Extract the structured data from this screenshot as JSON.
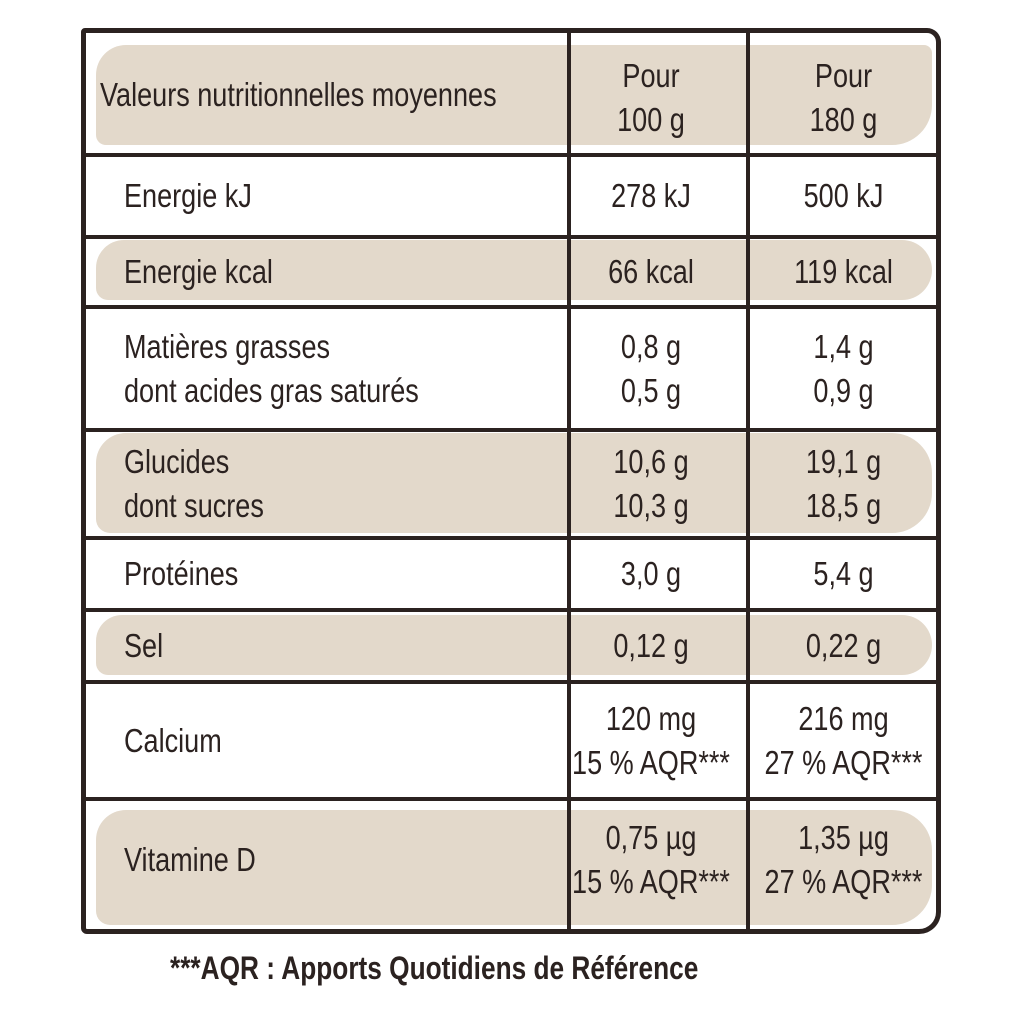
{
  "header": {
    "label": "Valeurs nutritionnelles moyennes",
    "col1": [
      "Pour",
      "100 g"
    ],
    "col2": [
      "Pour",
      "180 g"
    ]
  },
  "rows": [
    {
      "label": [
        "Energie kJ"
      ],
      "v1": [
        "278 kJ"
      ],
      "v2": [
        "500 kJ"
      ]
    },
    {
      "label": [
        "Energie kcal"
      ],
      "v1": [
        "66 kcal"
      ],
      "v2": [
        "119 kcal"
      ]
    },
    {
      "label": [
        "Matières grasses",
        "dont acides gras saturés"
      ],
      "v1": [
        "0,8 g",
        "0,5 g"
      ],
      "v2": [
        "1,4 g",
        "0,9 g"
      ]
    },
    {
      "label": [
        "Glucides",
        "dont sucres"
      ],
      "v1": [
        "10,6 g",
        "10,3 g"
      ],
      "v2": [
        "19,1 g",
        "18,5 g"
      ]
    },
    {
      "label": [
        "Protéines"
      ],
      "v1": [
        "3,0 g"
      ],
      "v2": [
        "5,4 g"
      ]
    },
    {
      "label": [
        "Sel"
      ],
      "v1": [
        "0,12 g"
      ],
      "v2": [
        "0,22 g"
      ]
    },
    {
      "label": [
        "Calcium"
      ],
      "v1": [
        "120 mg",
        "15 % AQR***"
      ],
      "v2": [
        "216 mg",
        "27 % AQR***"
      ]
    },
    {
      "label": [
        "Vitamine D"
      ],
      "v1": [
        "0,75 µg",
        "15 % AQR***"
      ],
      "v2": [
        "1,35 µg",
        "27 % AQR***"
      ]
    }
  ],
  "footnote": "***AQR : Apports Quotidiens de Référence",
  "colors": {
    "band": "#e3d9cb",
    "ink": "#2b2220"
  }
}
